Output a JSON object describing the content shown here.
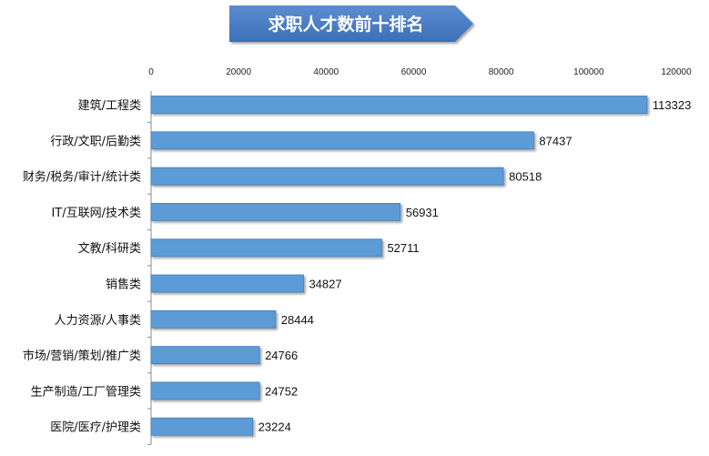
{
  "chart_data": {
    "type": "bar",
    "orientation": "horizontal",
    "title": "求职人才数前十排名",
    "categories": [
      "建筑/工程类",
      "行政/文职/后勤类",
      "财务/税务/审计/统计类",
      "IT/互联网/技术类",
      "文教/科研类",
      "销售类",
      "人力资源/人事类",
      "市场/营销/策划/推广类",
      "生产制造/工厂管理类",
      "医院/医疗/护理类"
    ],
    "values": [
      113323,
      87437,
      80518,
      56931,
      52711,
      34827,
      28444,
      24766,
      24752,
      23224
    ],
    "xlim": [
      0,
      120000
    ],
    "ticks": [
      "0",
      "20000",
      "40000",
      "60000",
      "80000",
      "100000",
      "120000"
    ],
    "axis_position": "top",
    "grid": false,
    "legend": "none",
    "colors": {
      "bar": "#5b9bd5",
      "bar_edge": "#3f7fbf",
      "title_fill": "#4a7cc0",
      "title_text": "#ffffff"
    }
  }
}
